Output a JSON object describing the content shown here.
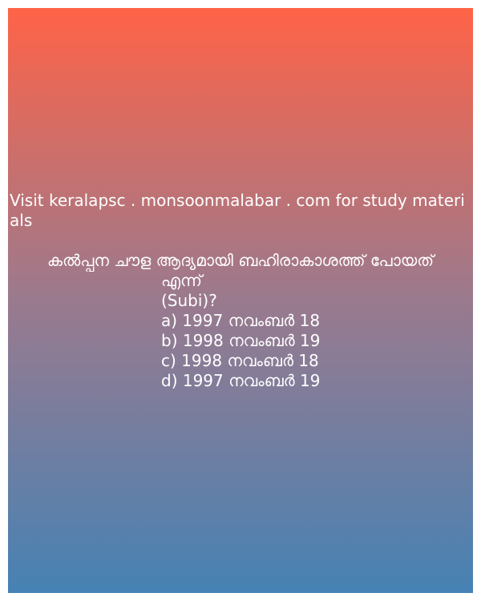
{
  "promo_text": "Visit keralapsc . monsoonmalabar . com for study materials",
  "question": {
    "line1": "കൽപ്പന ചൗള ആദ്യമായി ബഹിരാകാശത്ത് പോയത്",
    "line2": "എന്ന്",
    "subject": "(Subi)?"
  },
  "options": [
    {
      "label": "a) 1997 നവംബർ 18"
    },
    {
      "label": "b) 1998 നവംബർ 19"
    },
    {
      "label": "c) 1998 നവംബർ 18"
    },
    {
      "label": "d) 1997 നവംബർ 19"
    }
  ],
  "colors": {
    "gradient_top": "#ff6347",
    "gradient_bottom": "#4682b4",
    "text": "#ffffff"
  }
}
